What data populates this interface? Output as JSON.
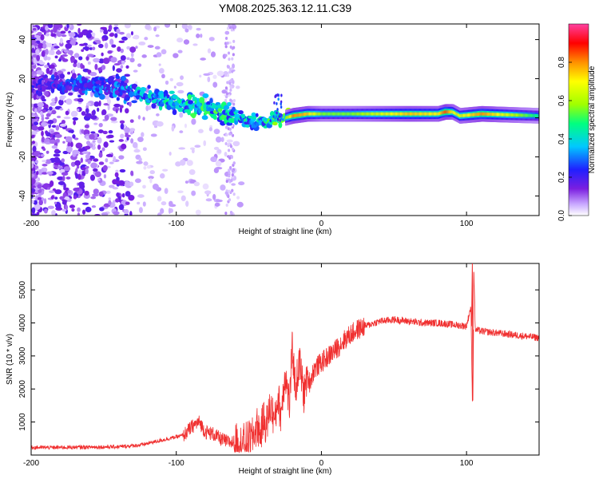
{
  "title": "YM08.2025.363.12.11.C39",
  "chart_data": [
    {
      "type": "heatmap",
      "xlabel": "Height of straight line (km)",
      "ylabel": "Frequency (Hz)",
      "xlim": [
        -200,
        150
      ],
      "ylim": [
        -50,
        48
      ],
      "xticks": [
        -200,
        -100,
        0,
        100
      ],
      "yticks": [
        -40,
        -20,
        0,
        20,
        40
      ],
      "colorbar": {
        "label": "Normalized spectral amplitude",
        "range": [
          0,
          1
        ],
        "ticks": [
          0.0,
          0.2,
          0.4,
          0.6,
          0.8
        ],
        "tick_labels": [
          "0.0",
          "0.2",
          "0.4",
          "0.6",
          "0.8"
        ],
        "colors": [
          "#ffffff",
          "#c8a8ff",
          "#7b1fe0",
          "#2020ff",
          "#00c8ff",
          "#00ff80",
          "#a0ff00",
          "#ffff00",
          "#ff9000",
          "#ff0000",
          "#ff40a0"
        ]
      },
      "ridge": {
        "x": [
          -200,
          -180,
          -160,
          -140,
          -120,
          -100,
          -80,
          -60,
          -45,
          -35,
          -25,
          -20,
          -10,
          0,
          20,
          60,
          80,
          85,
          90,
          95,
          110,
          150
        ],
        "y": [
          18,
          17,
          17,
          15,
          11,
          8,
          5,
          1,
          -3,
          -1,
          0,
          1,
          2,
          2,
          2,
          2,
          2,
          3,
          3,
          1,
          2,
          1
        ],
        "amplitude": [
          0.2,
          0.25,
          0.3,
          0.3,
          0.4,
          0.42,
          0.45,
          0.45,
          0.4,
          0.45,
          0.55,
          0.8,
          0.75,
          0.55,
          0.55,
          0.75,
          0.7,
          0.85,
          0.7,
          0.65,
          0.8,
          0.45
        ]
      }
    },
    {
      "type": "line",
      "xlabel": "Height of straight line (km)",
      "ylabel": "SNR (10 * v/v)",
      "xlim": [
        -200,
        150
      ],
      "ylim": [
        0,
        5800
      ],
      "xticks": [
        -200,
        -100,
        0,
        100
      ],
      "yticks": [
        1000,
        2000,
        3000,
        4000,
        5000
      ],
      "color": "#f03030",
      "series": [
        {
          "name": "SNR",
          "x": [
            -200,
            -180,
            -160,
            -140,
            -125,
            -115,
            -105,
            -95,
            -88,
            -84,
            -80,
            -75,
            -70,
            -65,
            -60,
            -55,
            -48,
            -44,
            -42,
            -40,
            -38,
            -35,
            -32,
            -30,
            -28,
            -25,
            -22,
            -20,
            -18,
            -15,
            -12,
            -10,
            -8,
            -5,
            0,
            5,
            10,
            15,
            20,
            25,
            30,
            40,
            50,
            60,
            70,
            80,
            90,
            100,
            103,
            104,
            105,
            106,
            110,
            120,
            130,
            140,
            150
          ],
          "y": [
            230,
            230,
            240,
            250,
            300,
            400,
            500,
            600,
            900,
            1000,
            700,
            650,
            500,
            400,
            380,
            350,
            500,
            900,
            600,
            1100,
            900,
            1500,
            1000,
            1800,
            1200,
            2500,
            1500,
            3300,
            2000,
            2800,
            1800,
            2400,
            2200,
            2600,
            2800,
            3000,
            3200,
            3450,
            3650,
            3800,
            3900,
            4050,
            4100,
            4050,
            4000,
            4000,
            3950,
            3900,
            4500,
            1650,
            5800,
            3800,
            3750,
            3700,
            3650,
            3600,
            3550
          ]
        }
      ]
    }
  ]
}
